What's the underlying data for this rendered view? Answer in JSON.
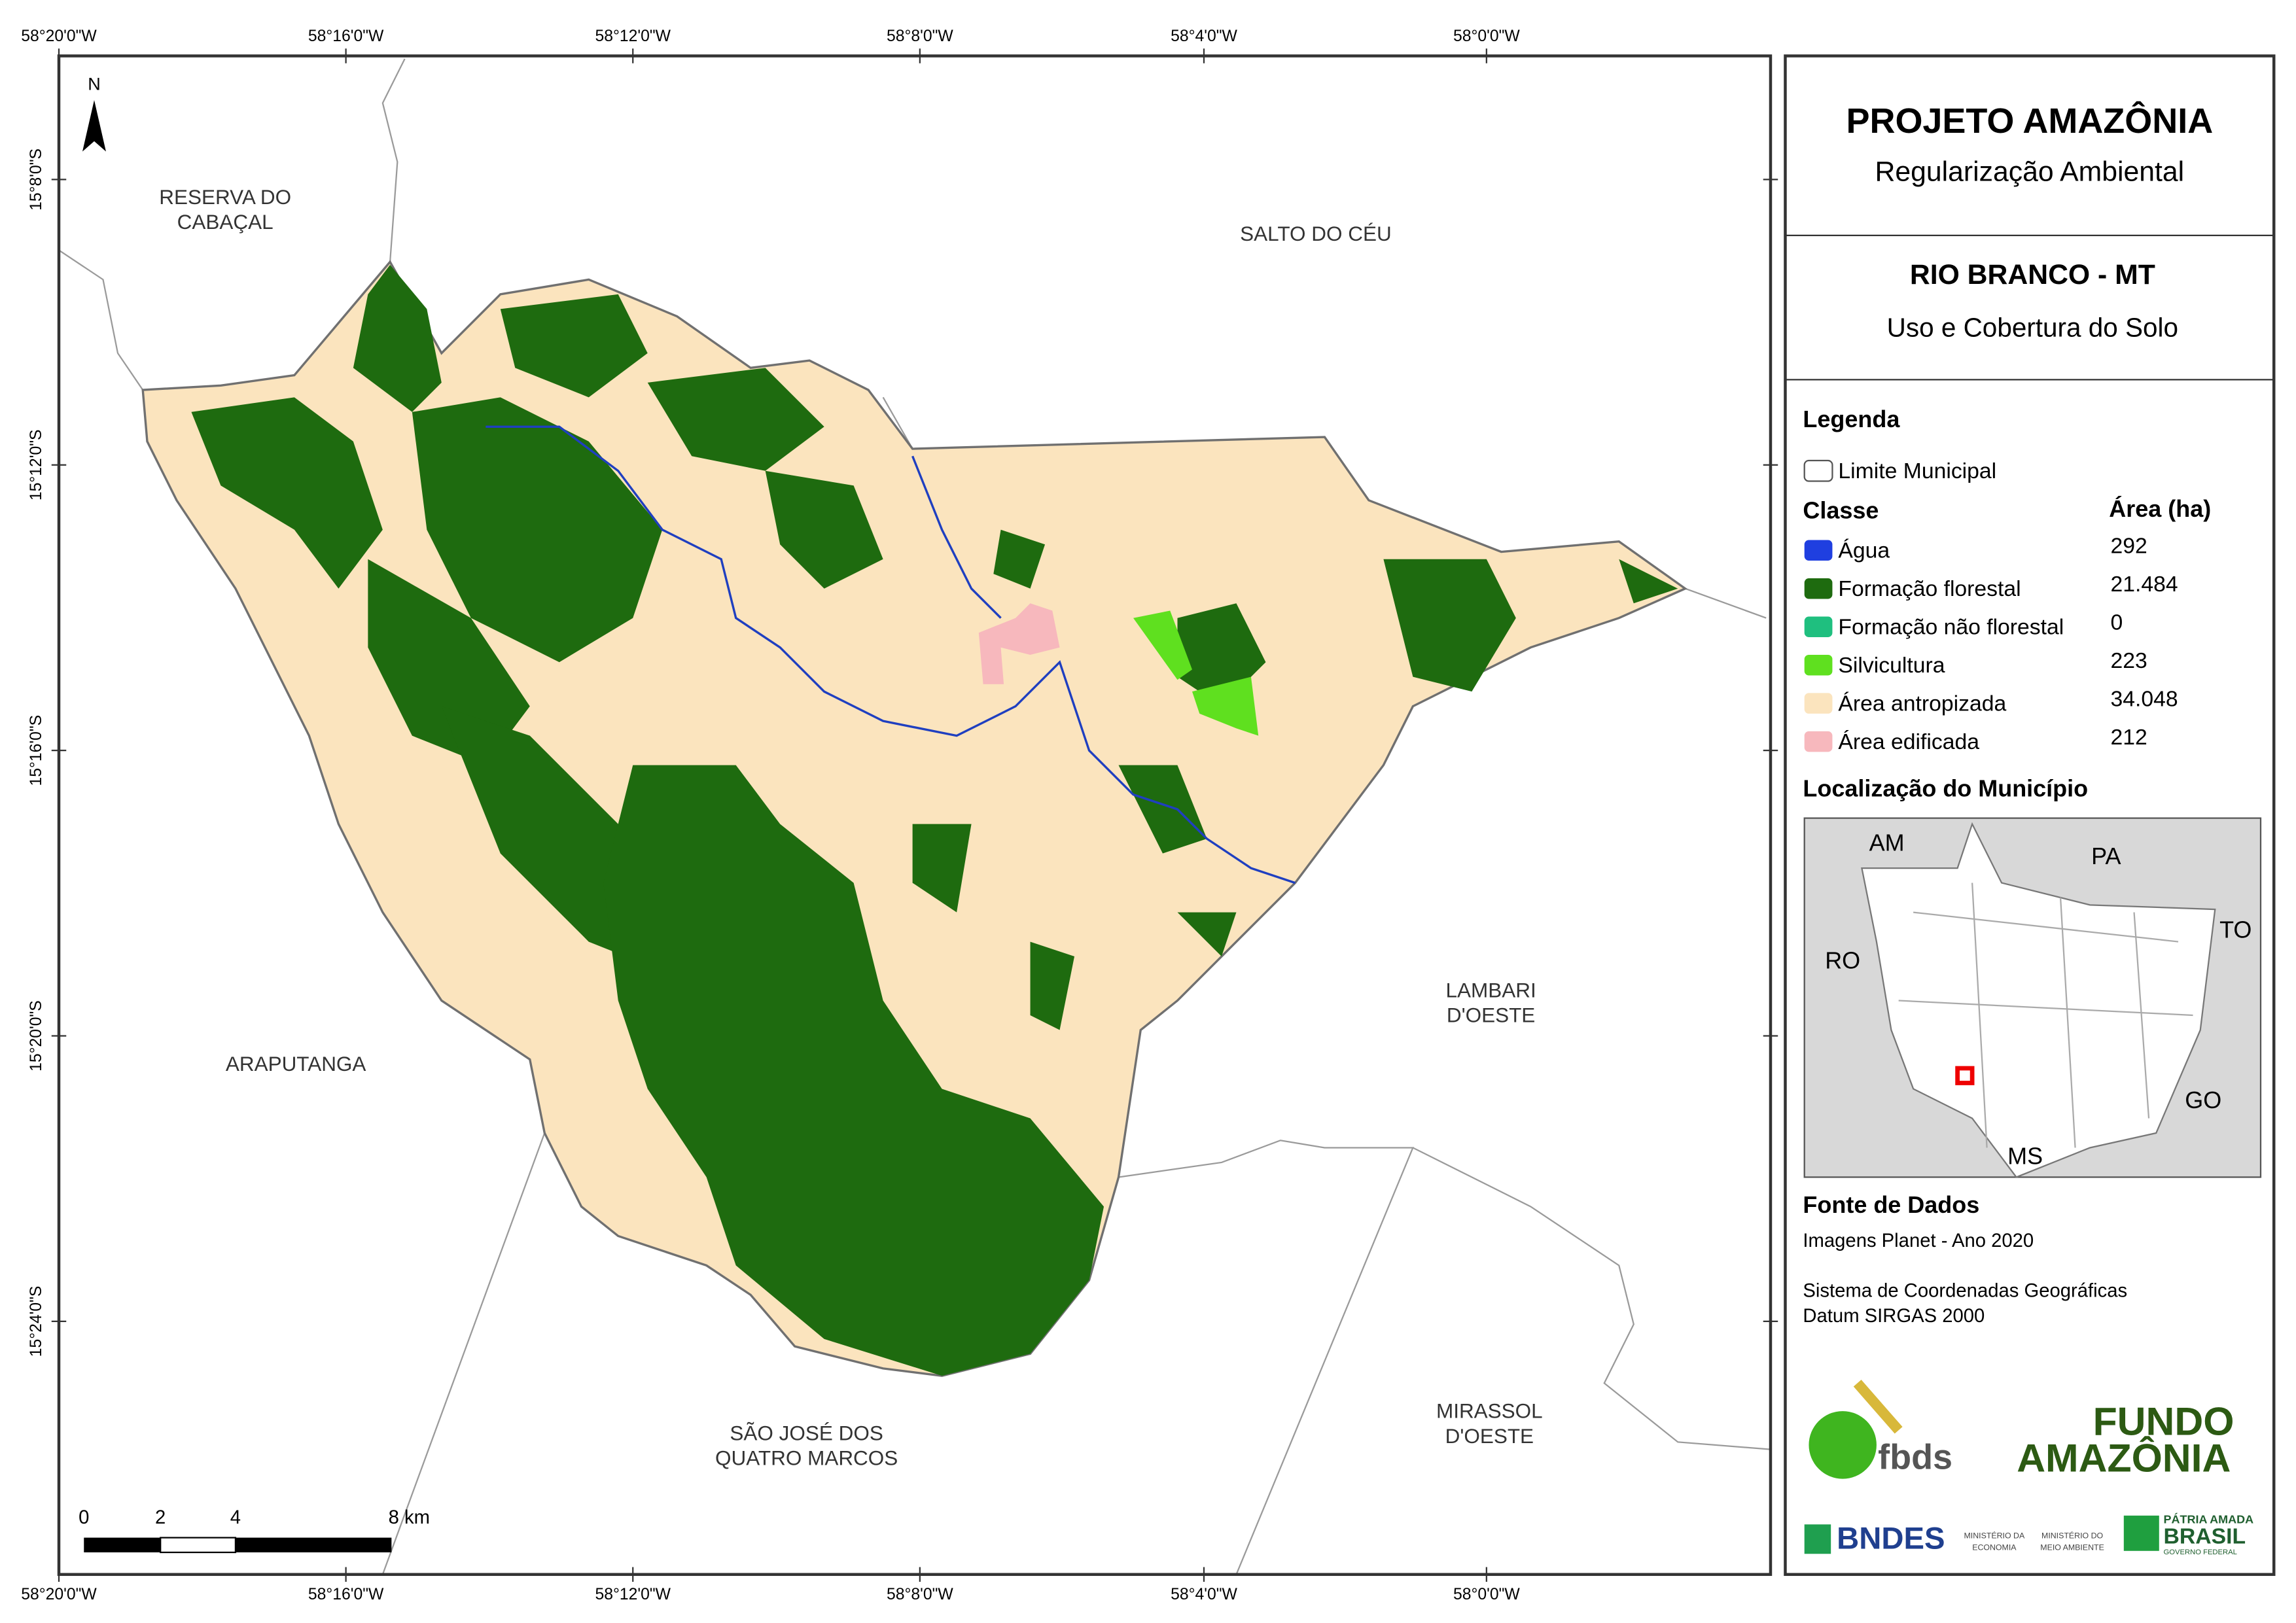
{
  "header": {
    "title": "PROJETO AMAZÔNIA",
    "subtitle": "Regularização Ambiental"
  },
  "map_info": {
    "title": "RIO BRANCO - MT",
    "subtitle": "Uso e Cobertura do Solo"
  },
  "legend": {
    "title": "Legenda",
    "boundary": "Limite Municipal",
    "class_header": "Classe",
    "area_header": "Área (ha)",
    "items": [
      {
        "label": "Água",
        "area": "292",
        "color": "#1f3fe0"
      },
      {
        "label": "Formação florestal",
        "area": "21.484",
        "color": "#1e6b0f"
      },
      {
        "label": "Formação não florestal",
        "area": "0",
        "color": "#1fbf7f"
      },
      {
        "label": "Silvicultura",
        "area": "223",
        "color": "#5fe01f"
      },
      {
        "label": "Área antropizada",
        "area": "34.048",
        "color": "#fbe4be"
      },
      {
        "label": "Área edificada",
        "area": "212",
        "color": "#f7b8bd"
      }
    ]
  },
  "location": {
    "title": "Localização do Município",
    "states": [
      "AM",
      "PA",
      "RO",
      "TO",
      "GO",
      "MS"
    ]
  },
  "source": {
    "title": "Fonte de Dados",
    "lines": [
      "Imagens Planet - Ano 2020",
      "Sistema de Coordenadas Geográficas",
      "Datum SIRGAS 2000"
    ]
  },
  "logos": {
    "fbds": "fbds",
    "fundo": [
      "FUNDO",
      "AMAZÔNIA"
    ],
    "bndes": "BNDES",
    "ministries": [
      [
        "MINISTÉRIO DA",
        "ECONOMIA"
      ],
      [
        "MINISTÉRIO DO",
        "MEIO AMBIENTE"
      ]
    ],
    "brasil": [
      "PÁTRIA AMADA",
      "BRASIL",
      "GOVERNO FEDERAL"
    ]
  },
  "map": {
    "north": "N",
    "neighbors": [
      [
        "RESERVA DO",
        "CABAÇAL"
      ],
      [
        "SALTO DO CÉU"
      ],
      [
        "LAMBARI",
        "D'OESTE"
      ],
      [
        "ARAPUTANGA"
      ],
      [
        "SÃO JOSÉ DOS",
        "QUATRO MARCOS"
      ],
      [
        "MIRASSOL",
        "D'OESTE"
      ]
    ],
    "scale": [
      "0",
      "2",
      "4",
      "8 km"
    ],
    "lon_labels": [
      "58°20'0\"W",
      "58°16'0\"W",
      "58°12'0\"W",
      "58°8'0\"W",
      "58°4'0\"W",
      "58°0'0\"W"
    ],
    "lat_labels": [
      "15°8'0\"S",
      "15°12'0\"S",
      "15°16'0\"S",
      "15°20'0\"S",
      "15°24'0\"S"
    ]
  }
}
